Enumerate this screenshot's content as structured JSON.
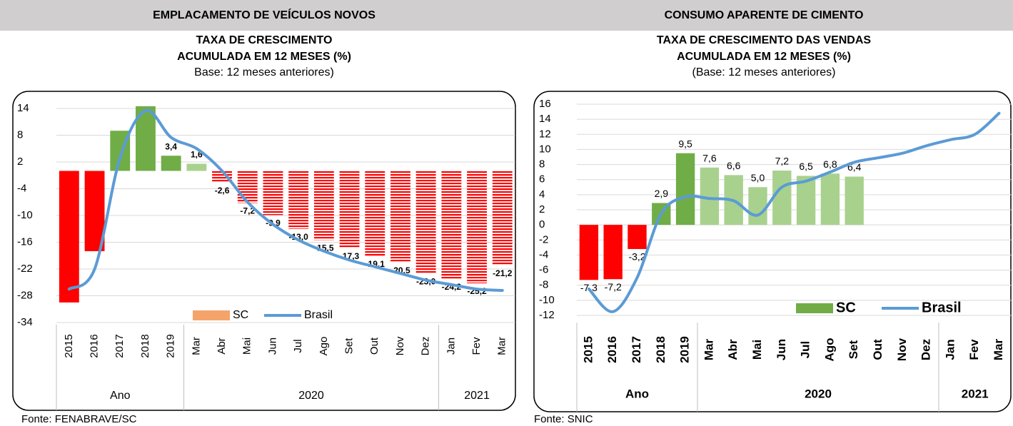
{
  "chart_data": [
    {
      "type": "bar",
      "header": "EMPLACAMENTO DE VEÍCULOS NOVOS",
      "title": [
        "TAXA DE CRESCIMENTO",
        "ACUMULADA EM 12 MESES (%)"
      ],
      "subtitle": "Base: 12 meses anteriores)",
      "source": "Fonte: FENABRAVE/SC",
      "categories": [
        "2015",
        "2016",
        "2017",
        "2018",
        "2019",
        "Mar",
        "Abr",
        "Mai",
        "Jun",
        "Jul",
        "Ago",
        "Set",
        "Out",
        "Nov",
        "Dez",
        "Jan",
        "Fev",
        "Mar"
      ],
      "groups": [
        {
          "label": "Ano",
          "count": 5
        },
        {
          "label": "2020",
          "count": 10
        },
        {
          "label": "2021",
          "count": 3
        }
      ],
      "ylim": [
        -34,
        15.5
      ],
      "yticks": [
        -34,
        -28,
        -22,
        -16,
        -10,
        -4,
        2,
        8,
        14
      ],
      "grid": true,
      "series": [
        {
          "name": "SC",
          "kind": "bar",
          "color": "#f4a46a",
          "values": [
            -29.5,
            -18,
            9,
            14.5,
            3.4,
            1.6,
            -2.6,
            -7.2,
            -9.9,
            -13.0,
            -15.5,
            -17.3,
            -19.1,
            -20.5,
            -23.0,
            -24.2,
            -25.2,
            -21.2
          ],
          "value_labels": [
            null,
            null,
            null,
            null,
            "3,4",
            "1,6",
            "-2,6",
            "-7,2",
            "-9,9",
            "-13,0",
            "-15,5",
            "-17,3",
            "-19,1",
            "-20,5",
            "-23,0",
            "-24,2",
            "-25,2",
            "-21,2"
          ],
          "colors": [
            "#ff0000",
            "#ff0000",
            "#70ad47",
            "#70ad47",
            "#70ad47",
            "#a9d18e",
            "#ff0000",
            "#ff0000",
            "#ff0000",
            "#ff0000",
            "#ff0000",
            "#ff0000",
            "#ff0000",
            "#ff0000",
            "#ff0000",
            "#ff0000",
            "#ff0000",
            "#ff0000"
          ],
          "patterns": [
            "solid",
            "solid",
            "solid",
            "solid",
            "solid",
            "solid",
            "striped",
            "striped",
            "striped",
            "striped",
            "striped",
            "striped",
            "striped",
            "striped",
            "striped",
            "striped",
            "striped",
            "striped"
          ]
        },
        {
          "name": "Brasil",
          "kind": "line",
          "color": "#5b9bd5",
          "values": [
            -26.5,
            -22,
            3,
            13.5,
            7.5,
            5,
            0,
            -7,
            -12,
            -15.5,
            -18,
            -20,
            -21.5,
            -23,
            -24.5,
            -25.5,
            -26.5,
            -26.8
          ]
        }
      ]
    },
    {
      "type": "bar",
      "header": "CONSUMO APARENTE DE CIMENTO",
      "title": [
        "TAXA DE CRESCIMENTO DAS VENDAS",
        "ACUMULADA EM 12 MESES (%)"
      ],
      "subtitle": "(Base: 12 meses anteriores)",
      "source": "Fonte: SNIC",
      "categories": [
        "2015",
        "2016",
        "2017",
        "2018",
        "2019",
        "Mar",
        "Abr",
        "Mai",
        "Jun",
        "Jul",
        "Ago",
        "Set",
        "Out",
        "Nov",
        "Dez",
        "Jan",
        "Fev",
        "Mar"
      ],
      "groups": [
        {
          "label": "Ano",
          "count": 5
        },
        {
          "label": "2020",
          "count": 10
        },
        {
          "label": "2021",
          "count": 3
        }
      ],
      "ylim": [
        -12,
        16
      ],
      "yticks": [
        -12,
        -10,
        -8,
        -6,
        -4,
        -2,
        0,
        2,
        4,
        6,
        8,
        10,
        12,
        14,
        16
      ],
      "grid": true,
      "negative_tick_color": "#ff0000",
      "series": [
        {
          "name": "SC",
          "kind": "bar",
          "color": "#70ad47",
          "values": [
            -7.3,
            -7.2,
            -3.2,
            2.9,
            9.5,
            7.6,
            6.6,
            5.0,
            7.2,
            6.5,
            6.8,
            6.4,
            null,
            null,
            null,
            null,
            null,
            null
          ],
          "value_labels": [
            "-7,3",
            "-7,2",
            "-3,2",
            "2,9",
            "9,5",
            "7,6",
            "6,6",
            "5,0",
            "7,2",
            "6,5",
            "6,8",
            "6,4",
            null,
            null,
            null,
            null,
            null,
            null
          ],
          "colors": [
            "#ff0000",
            "#ff0000",
            "#ff0000",
            "#70ad47",
            "#70ad47",
            "#a9d18e",
            "#a9d18e",
            "#a9d18e",
            "#a9d18e",
            "#a9d18e",
            "#a9d18e",
            "#a9d18e",
            null,
            null,
            null,
            null,
            null,
            null
          ],
          "patterns": [
            "solid",
            "solid",
            "solid",
            "solid",
            "solid",
            "solid",
            "solid",
            "solid",
            "solid",
            "solid",
            "solid",
            "solid",
            null,
            null,
            null,
            null,
            null,
            null
          ]
        },
        {
          "name": "Brasil",
          "kind": "line",
          "color": "#5b9bd5",
          "values": [
            -8.5,
            -11.5,
            -7,
            1.5,
            3.7,
            3.5,
            3.2,
            1.3,
            5,
            5.8,
            7,
            8.3,
            8.9,
            9.5,
            10.5,
            11.3,
            12,
            14.8
          ]
        }
      ]
    }
  ]
}
